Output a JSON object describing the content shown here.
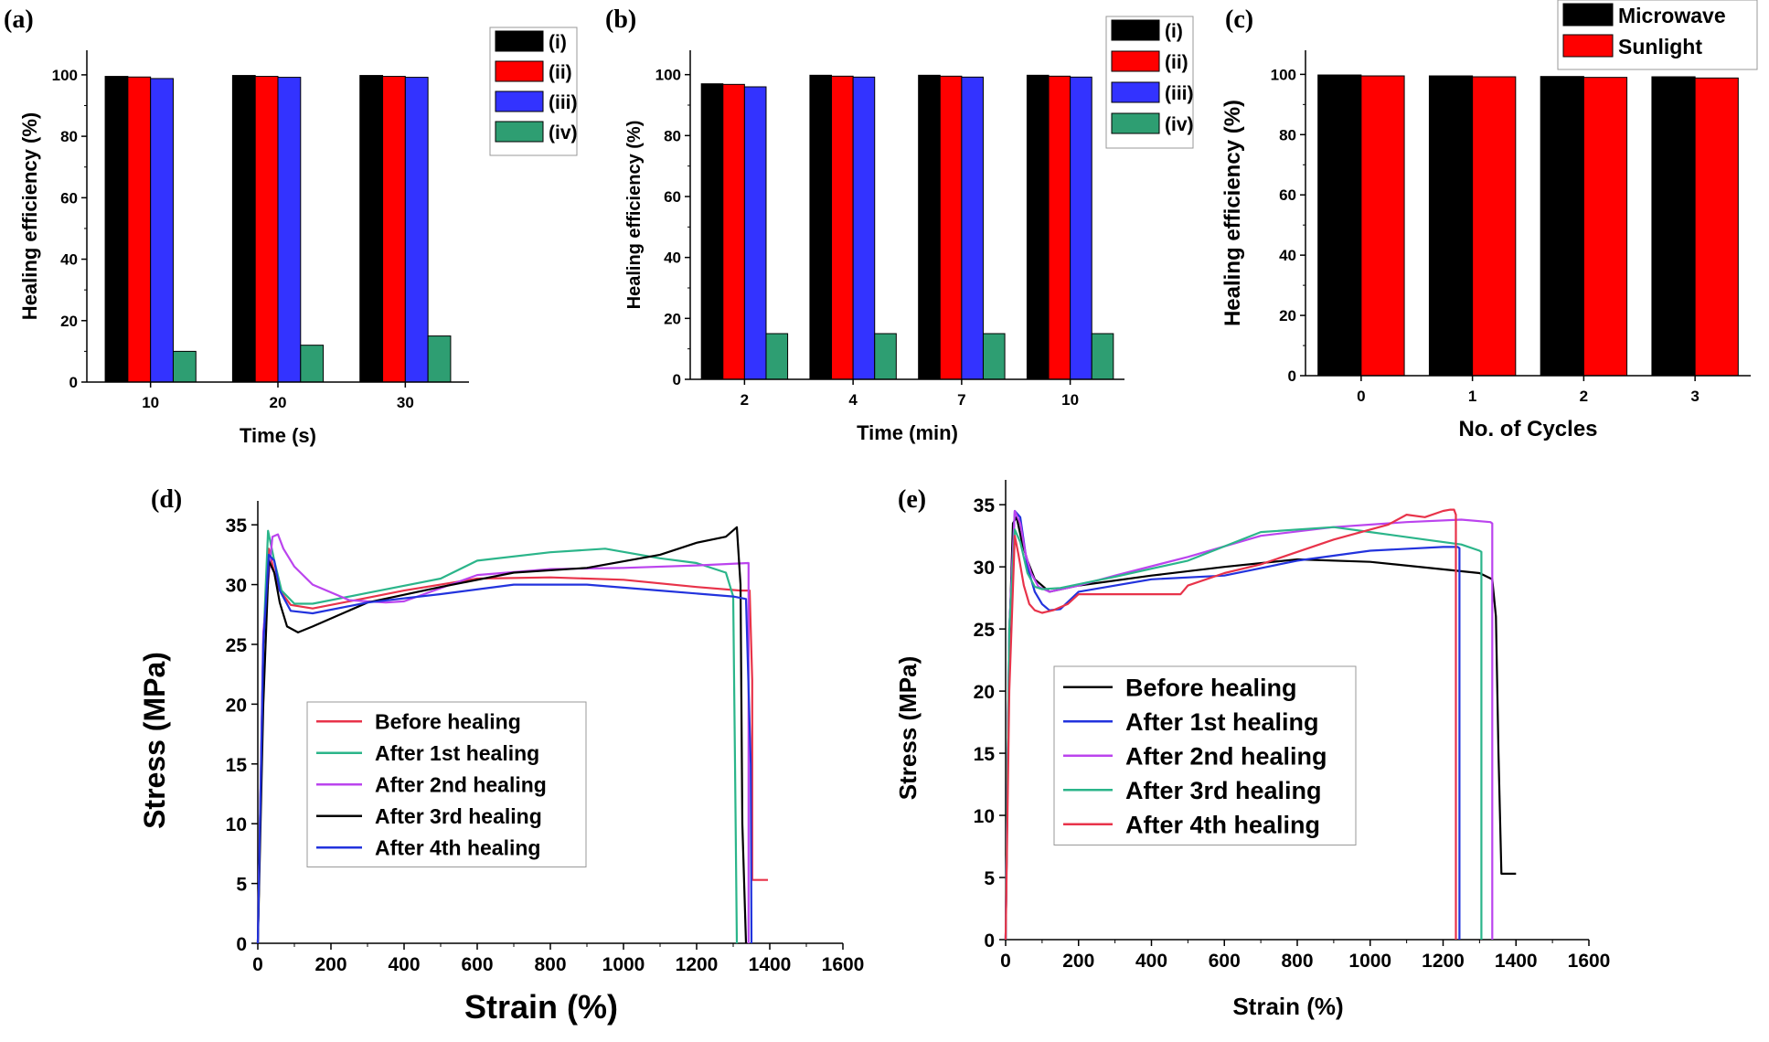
{
  "chart_data": [
    {
      "panel": "(a)",
      "type": "bar",
      "categories": [
        "10",
        "20",
        "30"
      ],
      "series": [
        {
          "name": "(i)",
          "color": "#000000",
          "values": [
            99.5,
            99.8,
            99.8
          ]
        },
        {
          "name": "(ii)",
          "color": "#ff0000",
          "values": [
            99.3,
            99.5,
            99.5
          ]
        },
        {
          "name": "(iii)",
          "color": "#3333ff",
          "values": [
            98.8,
            99.2,
            99.2
          ]
        },
        {
          "name": "(iv)",
          "color": "#2e9e72",
          "values": [
            10,
            12,
            15
          ]
        }
      ],
      "xlabel": "Time (s)",
      "ylabel": "Healing efficiency (%)",
      "ylim": [
        0,
        108
      ],
      "yticks": [
        0,
        20,
        40,
        60,
        80,
        100
      ],
      "legend_position": "top-right"
    },
    {
      "panel": "(b)",
      "type": "bar",
      "categories": [
        "2",
        "4",
        "7",
        "10"
      ],
      "series": [
        {
          "name": "(i)",
          "color": "#000000",
          "values": [
            97,
            99.8,
            99.8,
            99.8
          ]
        },
        {
          "name": "(ii)",
          "color": "#ff0000",
          "values": [
            96.8,
            99.5,
            99.5,
            99.5
          ]
        },
        {
          "name": "(iii)",
          "color": "#3333ff",
          "values": [
            96,
            99.2,
            99.2,
            99.2
          ]
        },
        {
          "name": "(iv)",
          "color": "#2e9e72",
          "values": [
            15,
            15,
            15,
            15
          ]
        }
      ],
      "xlabel": "Time (min)",
      "ylabel": "Healing efficiency (%)",
      "ylim": [
        0,
        108
      ],
      "yticks": [
        0,
        20,
        40,
        60,
        80,
        100
      ],
      "legend_position": "top-right"
    },
    {
      "panel": "(c)",
      "type": "bar",
      "categories": [
        "0",
        "1",
        "2",
        "3"
      ],
      "series": [
        {
          "name": "Microwave",
          "color": "#000000",
          "values": [
            99.8,
            99.5,
            99.3,
            99.2
          ]
        },
        {
          "name": "Sunlight",
          "color": "#ff0000",
          "values": [
            99.5,
            99.2,
            99.0,
            98.8
          ]
        }
      ],
      "xlabel": "No. of Cycles",
      "ylabel": "Healing efficiency (%)",
      "ylim": [
        0,
        108
      ],
      "yticks": [
        0,
        20,
        40,
        60,
        80,
        100
      ],
      "legend_position": "top-right"
    },
    {
      "panel": "(d)",
      "type": "line",
      "xlabel": "Strain (%)",
      "ylabel": "Stress (MPa)",
      "xlim": [
        0,
        1600
      ],
      "ylim": [
        0,
        37
      ],
      "xticks": [
        0,
        200,
        400,
        600,
        800,
        1000,
        1200,
        1400,
        1600
      ],
      "yticks": [
        0,
        5,
        10,
        15,
        20,
        25,
        30,
        35
      ],
      "legend_position": "center-left",
      "series": [
        {
          "name": "Before healing",
          "color": "#e8334a",
          "x": [
            0,
            15,
            30,
            45,
            60,
            90,
            150,
            250,
            400,
            600,
            800,
            1000,
            1200,
            1320,
            1345,
            1352,
            1352,
            1395
          ],
          "y": [
            0,
            25,
            33,
            31,
            29.5,
            28.3,
            28,
            28.6,
            29.5,
            30.5,
            30.6,
            30.4,
            29.8,
            29.5,
            29.5,
            22,
            5.3,
            5.3
          ]
        },
        {
          "name": "After 1st healing",
          "color": "#2bb58a",
          "x": [
            0,
            15,
            28,
            45,
            65,
            100,
            150,
            300,
            500,
            600,
            800,
            950,
            1100,
            1200,
            1280,
            1300,
            1305,
            1310
          ],
          "y": [
            0,
            25,
            34.5,
            32,
            29.5,
            28.4,
            28.4,
            29.3,
            30.5,
            32,
            32.7,
            33,
            32.2,
            31.8,
            31,
            29,
            15,
            0
          ]
        },
        {
          "name": "After 2nd healing",
          "color": "#bb44ee",
          "x": [
            0,
            15,
            40,
            55,
            70,
            100,
            150,
            250,
            350,
            400,
            600,
            800,
            1000,
            1200,
            1340,
            1342,
            1342
          ],
          "y": [
            0,
            26,
            34,
            34.2,
            33,
            31.5,
            30,
            28.7,
            28.5,
            28.6,
            30.8,
            31.3,
            31.4,
            31.6,
            31.8,
            31.8,
            0
          ]
        },
        {
          "name": "After 3rd healing",
          "color": "#000000",
          "x": [
            0,
            15,
            30,
            45,
            60,
            80,
            110,
            150,
            300,
            500,
            700,
            900,
            1100,
            1200,
            1280,
            1310,
            1320,
            1325,
            1335
          ],
          "y": [
            0,
            20,
            32,
            31,
            28.5,
            26.5,
            26,
            26.5,
            28.5,
            29.8,
            31,
            31.4,
            32.5,
            33.5,
            34,
            34.8,
            30,
            10,
            0
          ]
        },
        {
          "name": "After 4th healing",
          "color": "#2233dd",
          "x": [
            0,
            15,
            30,
            45,
            60,
            90,
            150,
            300,
            500,
            700,
            900,
            1100,
            1300,
            1335,
            1348,
            1350
          ],
          "y": [
            0,
            25,
            32.5,
            32,
            29.5,
            27.8,
            27.6,
            28.5,
            29.2,
            30,
            30,
            29.5,
            29,
            28.8,
            15,
            0
          ]
        }
      ]
    },
    {
      "panel": "(e)",
      "type": "line",
      "xlabel": "Strain (%)",
      "ylabel": "Stress (MPa)",
      "xlim": [
        0,
        1600
      ],
      "ylim": [
        0,
        37
      ],
      "xticks": [
        0,
        200,
        400,
        600,
        800,
        1000,
        1200,
        1400,
        1600
      ],
      "yticks": [
        0,
        5,
        10,
        15,
        20,
        25,
        30,
        35
      ],
      "legend_position": "center-left",
      "series": [
        {
          "name": "Before healing",
          "color": "#000000",
          "x": [
            0,
            10,
            20,
            30,
            45,
            60,
            80,
            120,
            200,
            400,
            600,
            800,
            1000,
            1200,
            1300,
            1335,
            1345,
            1352,
            1360,
            1360,
            1400
          ],
          "y": [
            0,
            24,
            33.5,
            34,
            32,
            30.5,
            29,
            28,
            28.5,
            29.3,
            30,
            30.6,
            30.4,
            29.8,
            29.5,
            29,
            26,
            15,
            5.3,
            5.3,
            5.3
          ]
        },
        {
          "name": "After 1st healing",
          "color": "#2233dd",
          "x": [
            0,
            10,
            25,
            40,
            60,
            80,
            100,
            120,
            150,
            200,
            400,
            600,
            800,
            1000,
            1200,
            1240,
            1245,
            1245
          ],
          "y": [
            0,
            25,
            34.5,
            34,
            30,
            28,
            27,
            26.5,
            26.6,
            28,
            29,
            29.3,
            30.5,
            31.3,
            31.6,
            31.6,
            31.5,
            0
          ]
        },
        {
          "name": "After 2nd healing",
          "color": "#bb44ee",
          "x": [
            0,
            10,
            25,
            40,
            55,
            70,
            90,
            120,
            200,
            300,
            500,
            700,
            900,
            1100,
            1250,
            1330,
            1335,
            1335
          ],
          "y": [
            0,
            25,
            34.5,
            33.5,
            31,
            29.5,
            28.4,
            28,
            28.5,
            29.3,
            30.8,
            32.5,
            33.2,
            33.6,
            33.8,
            33.6,
            33.5,
            0
          ]
        },
        {
          "name": "After 3rd healing",
          "color": "#2bb58a",
          "x": [
            0,
            10,
            25,
            40,
            60,
            80,
            100,
            150,
            300,
            500,
            700,
            900,
            1000,
            1150,
            1250,
            1300,
            1305,
            1305
          ],
          "y": [
            0,
            25,
            33,
            32,
            29.5,
            28.4,
            28.2,
            28.3,
            29.2,
            30.5,
            32.8,
            33.2,
            32.8,
            32.2,
            31.8,
            31.3,
            31.2,
            0
          ]
        },
        {
          "name": "After 4th healing",
          "color": "#e8334a",
          "x": [
            0,
            10,
            25,
            35,
            50,
            65,
            80,
            100,
            130,
            170,
            200,
            480,
            500,
            600,
            700,
            900,
            1050,
            1100,
            1150,
            1200,
            1220,
            1230,
            1235,
            1235
          ],
          "y": [
            0,
            20,
            32.5,
            31,
            28.5,
            27,
            26.5,
            26.3,
            26.5,
            27,
            27.8,
            27.8,
            28.5,
            29.5,
            30.2,
            32.2,
            33.4,
            34.2,
            34,
            34.5,
            34.6,
            34.6,
            34.2,
            0
          ]
        }
      ]
    }
  ]
}
